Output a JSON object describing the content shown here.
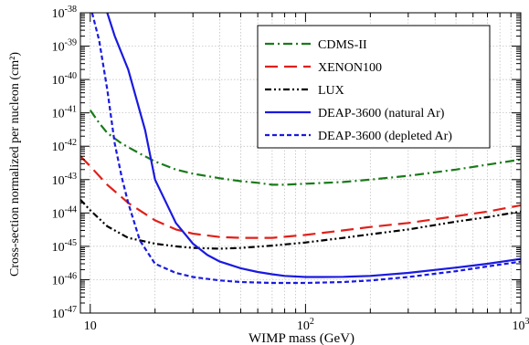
{
  "chart_data": {
    "type": "line",
    "xlabel": "WIMP mass (GeV)",
    "ylabel": "Cross-section normalized per nucleon (cm²)",
    "x_scale": "log",
    "y_scale": "log",
    "xlim": [
      9,
      1000
    ],
    "ylim": [
      1e-47,
      1e-38
    ],
    "grid": true,
    "legend_position": "top-right",
    "x_ticks": [
      {
        "value": 10,
        "base": "10",
        "exp": ""
      },
      {
        "value": 100,
        "base": "10",
        "exp": "2"
      },
      {
        "value": 1000,
        "base": "10",
        "exp": "3"
      }
    ],
    "y_ticks": [
      {
        "value": 1e-47,
        "base": "10",
        "exp": "-47"
      },
      {
        "value": 1e-46,
        "base": "10",
        "exp": "-46"
      },
      {
        "value": 1e-45,
        "base": "10",
        "exp": "-45"
      },
      {
        "value": 1e-44,
        "base": "10",
        "exp": "-44"
      },
      {
        "value": 1e-43,
        "base": "10",
        "exp": "-43"
      },
      {
        "value": 1e-42,
        "base": "10",
        "exp": "-42"
      },
      {
        "value": 1e-41,
        "base": "10",
        "exp": "-41"
      },
      {
        "value": 1e-40,
        "base": "10",
        "exp": "-40"
      },
      {
        "value": 1e-39,
        "base": "10",
        "exp": "-39"
      },
      {
        "value": 1e-38,
        "base": "10",
        "exp": "-38"
      }
    ],
    "series": [
      {
        "name": "CDMS-II",
        "color": "#1a7a1a",
        "dash": "dash-dot",
        "x": [
          10,
          11,
          12,
          14,
          17,
          20,
          25,
          30,
          40,
          50,
          60,
          70,
          80,
          100,
          150,
          200,
          300,
          500,
          700,
          1000
        ],
        "y": [
          1.2e-41,
          5e-42,
          2.5e-42,
          1.2e-42,
          6e-43,
          3.5e-43,
          2e-43,
          1.5e-43,
          1.1e-43,
          9e-44,
          8e-44,
          7e-44,
          7e-44,
          7.5e-44,
          8.5e-44,
          1e-43,
          1.3e-43,
          2e-43,
          2.8e-43,
          4e-43
        ]
      },
      {
        "name": "XENON100",
        "color": "#e0201a",
        "dash": "long-dash",
        "x": [
          9,
          10,
          12,
          15,
          20,
          25,
          30,
          40,
          50,
          70,
          100,
          150,
          200,
          300,
          500,
          700,
          1000
        ],
        "y": [
          5e-43,
          2.5e-43,
          7e-44,
          2e-44,
          6e-45,
          3.2e-45,
          2.4e-45,
          1.9e-45,
          1.8e-45,
          1.8e-45,
          2.2e-45,
          3e-45,
          3.8e-45,
          5e-45,
          8e-45,
          1.1e-44,
          1.7e-44
        ]
      },
      {
        "name": "LUX",
        "color": "#000000",
        "dash": "dash-dot-dot",
        "x": [
          9,
          10,
          12,
          15,
          20,
          25,
          30,
          40,
          50,
          70,
          100,
          150,
          200,
          300,
          500,
          700,
          1000
        ],
        "y": [
          2.5e-44,
          1.2e-44,
          4e-45,
          1.8e-45,
          1.2e-45,
          1e-45,
          9e-46,
          8.5e-46,
          9e-46,
          1.05e-45,
          1.3e-45,
          1.8e-45,
          2.3e-45,
          3.2e-45,
          5.5e-45,
          7.5e-45,
          1.1e-44
        ]
      },
      {
        "name": "DEAP-3600 (natural Ar)",
        "color": "#1a1ae0",
        "dash": "solid",
        "x": [
          12,
          13,
          15,
          18,
          20,
          25,
          30,
          35,
          40,
          50,
          60,
          70,
          80,
          100,
          120,
          150,
          200,
          300,
          500,
          700,
          1000
        ],
        "y": [
          1e-38,
          2e-39,
          2e-40,
          3e-42,
          1e-43,
          5e-45,
          1.2e-45,
          5.5e-46,
          3.5e-46,
          2.2e-46,
          1.7e-46,
          1.45e-46,
          1.3e-46,
          1.2e-46,
          1.2e-46,
          1.22e-46,
          1.3e-46,
          1.6e-46,
          2.3e-46,
          3e-46,
          4.2e-46
        ]
      },
      {
        "name": "DEAP-3600 (depleted Ar)",
        "color": "#1a1ae0",
        "dash": "short-dash",
        "x": [
          10.2,
          11,
          12,
          13,
          14,
          15,
          17,
          20,
          25,
          30,
          40,
          50,
          70,
          100,
          150,
          200,
          300,
          500,
          700,
          1000
        ],
        "y": [
          1e-38,
          1.5e-39,
          5e-41,
          1.2e-42,
          1.2e-43,
          2e-44,
          1.5e-45,
          3e-46,
          1.6e-46,
          1.2e-46,
          9.5e-47,
          8.5e-47,
          8e-47,
          8e-47,
          8.5e-47,
          9.5e-47,
          1.2e-46,
          1.8e-46,
          2.5e-46,
          3.5e-46
        ]
      }
    ]
  }
}
